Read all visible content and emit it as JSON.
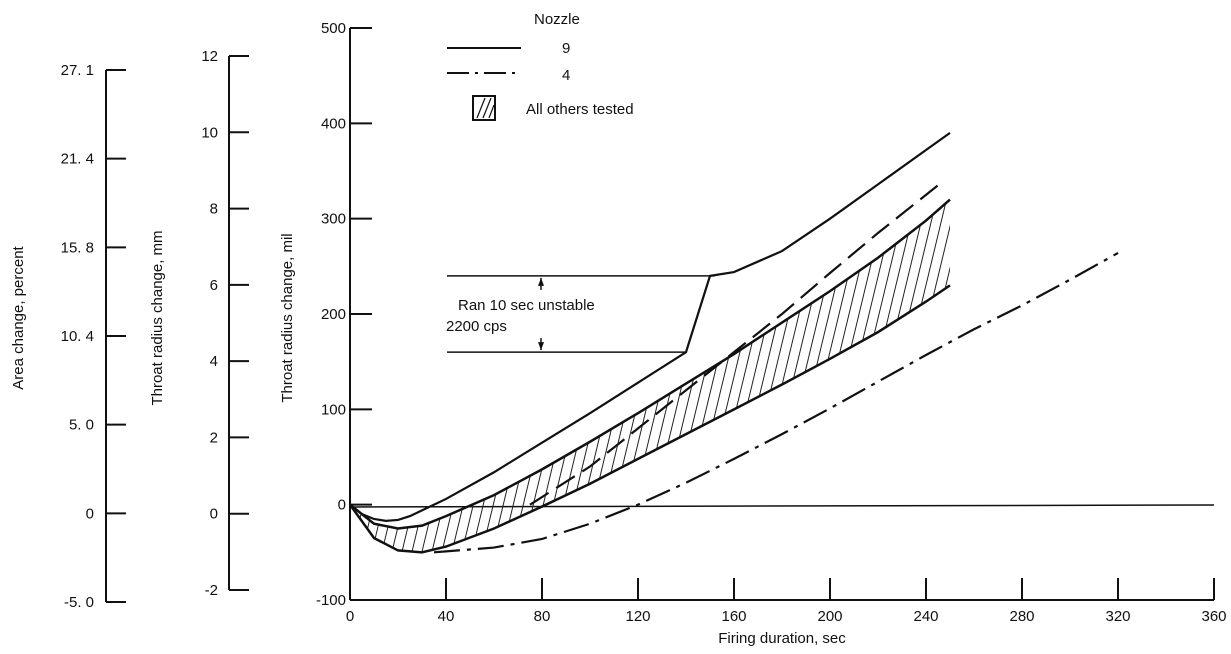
{
  "chart_data": {
    "type": "line",
    "xlabel": "Firing duration, sec",
    "ylabel": "Throat radius change, mil",
    "xlim": [
      0,
      360
    ],
    "ylim": [
      -100,
      500
    ],
    "x_ticks": [
      "0",
      "40",
      "80",
      "120",
      "160",
      "200",
      "240",
      "280",
      "320",
      "360"
    ],
    "y_ticks": [
      "-100",
      "0",
      "100",
      "200",
      "300",
      "400",
      "500"
    ],
    "secondary_axes": [
      {
        "label": "Throat radius change, mm",
        "ticks": [
          "-2",
          "0",
          "2",
          "4",
          "6",
          "8",
          "10",
          "12"
        ]
      },
      {
        "label": "Area change, percent",
        "ticks": [
          "-5. 0",
          "0",
          "5. 0",
          "10. 4",
          "15. 8",
          "21. 4",
          "27. 1"
        ]
      }
    ],
    "legend": {
      "title": "Nozzle",
      "position": "top-left",
      "entries": [
        {
          "label": "9",
          "style": "solid"
        },
        {
          "label": "4",
          "style": "dash-dot"
        },
        {
          "label": "All others tested",
          "style": "hatched"
        }
      ]
    },
    "series": [
      {
        "name": "9",
        "style": "solid",
        "x": [
          0,
          5,
          10,
          15,
          20,
          25,
          30,
          40,
          60,
          80,
          100,
          120,
          140,
          150,
          160,
          180,
          200,
          220,
          240,
          250
        ],
        "y": [
          0,
          -10,
          -15,
          -17,
          -16,
          -12,
          -6,
          6,
          34,
          65,
          96,
          128,
          160,
          240,
          244,
          266,
          300,
          336,
          372,
          390
        ]
      },
      {
        "name": "4",
        "style": "dash-dot",
        "x": [
          35,
          40,
          60,
          80,
          100,
          120,
          140,
          160,
          180,
          200,
          220,
          240,
          260,
          280,
          300,
          320
        ],
        "y": [
          -50,
          -49,
          -45,
          -36,
          -20,
          0,
          23,
          48,
          74,
          101,
          129,
          157,
          184,
          209,
          236,
          264
        ]
      },
      {
        "name": "",
        "style": "dashed",
        "x": [
          75,
          100,
          120,
          140,
          160,
          180,
          200,
          220,
          240,
          245
        ],
        "y": [
          0,
          40,
          80,
          120,
          160,
          200,
          243,
          285,
          325,
          335
        ]
      }
    ],
    "band": {
      "label": "All others tested",
      "x": [
        0,
        10,
        20,
        30,
        40,
        60,
        80,
        100,
        120,
        140,
        160,
        180,
        200,
        220,
        240,
        250
      ],
      "upper": [
        0,
        -20,
        -25,
        -22,
        -12,
        10,
        37,
        66,
        96,
        127,
        158,
        191,
        224,
        259,
        298,
        320
      ],
      "lower": [
        0,
        -35,
        -48,
        -50,
        -44,
        -25,
        -2,
        22,
        48,
        74,
        100,
        126,
        153,
        181,
        213,
        230
      ]
    },
    "annotation": {
      "lines": [
        "Ran 10 sec unstable",
        "2200 cps"
      ],
      "y_range": [
        160,
        240
      ]
    }
  }
}
